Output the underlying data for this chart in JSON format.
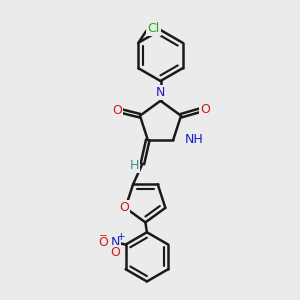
{
  "bg_color": "#ebebeb",
  "bond_color": "#1a1a1a",
  "bond_width": 1.8,
  "dbo": 0.06,
  "atom_colors": {
    "C": "#1a1a1a",
    "N": "#1a1acc",
    "O": "#cc1a1a",
    "H": "#3a9090",
    "Cl": "#22aa22"
  },
  "fs": 9.0,
  "fs_small": 7.5
}
